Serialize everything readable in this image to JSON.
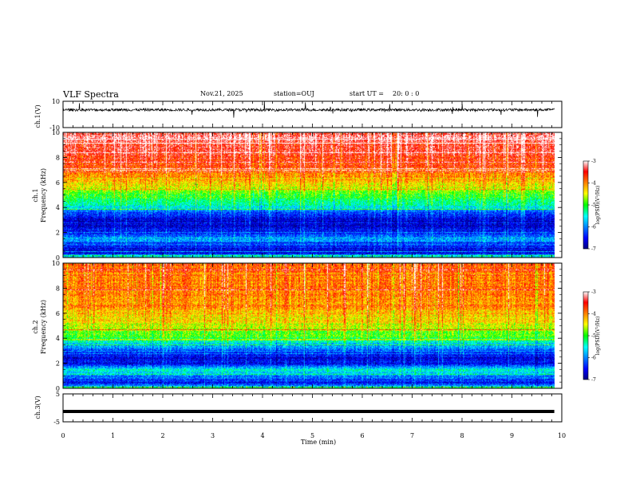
{
  "header": {
    "title": "VLF Spectra",
    "date": "Nov.21, 2025",
    "station": "station=OUJ",
    "start_label": "start  UT =",
    "start_value": "20: 0  : 0"
  },
  "chart_data": [
    {
      "type": "line",
      "name": "ch1-waveform",
      "ylabel": "ch.1(V)",
      "ylim": [
        -10,
        10
      ],
      "yticks": [
        "10",
        "-10"
      ],
      "xlim": [
        0,
        10
      ],
      "baseline": 3.5,
      "noise_amplitude": 1.0
    },
    {
      "type": "heatmap",
      "name": "ch1-spectrogram",
      "ylabel": "ch.1",
      "ylabel2": "Frequency (kHz)",
      "ylim": [
        0,
        10
      ],
      "yticks": [
        "0",
        "2",
        "4",
        "6",
        "8",
        "10"
      ],
      "xlim": [
        0,
        9.85
      ],
      "colorbar": {
        "label": "log(PSD)(V²/Hz)",
        "range": [
          -7,
          -3
        ],
        "ticks": [
          "-3",
          "-4",
          "-5",
          "-6",
          "-7"
        ]
      },
      "band_profile_khz": [
        0,
        0.5,
        1,
        1.5,
        2,
        2.5,
        3,
        3.5,
        4,
        4.5,
        5,
        5.5,
        6,
        6.5,
        7,
        7.5,
        8,
        8.5,
        9,
        9.5,
        10
      ],
      "band_profile_logpsd": [
        -5.2,
        -6.8,
        -6.3,
        -5.9,
        -6.5,
        -6.7,
        -6.7,
        -6.4,
        -5.6,
        -5.2,
        -4.9,
        -4.6,
        -4.3,
        -4.1,
        -3.9,
        -3.7,
        -3.6,
        -3.4,
        -3.4,
        -3.3,
        -3.3
      ]
    },
    {
      "type": "heatmap",
      "name": "ch2-spectrogram",
      "ylabel": "ch.2",
      "ylabel2": "Frequency (kHz)",
      "ylim": [
        0,
        10
      ],
      "yticks": [
        "0",
        "2",
        "4",
        "6",
        "8",
        "10"
      ],
      "xlim": [
        0,
        9.85
      ],
      "colorbar": {
        "label": "log(PSD)(V²/Hz)",
        "range": [
          -7,
          -3
        ],
        "ticks": [
          "-3",
          "-4",
          "-5",
          "-6",
          "-7"
        ]
      },
      "band_profile_khz": [
        0,
        0.5,
        1,
        1.5,
        2,
        2.5,
        3,
        3.5,
        4,
        4.5,
        5,
        5.5,
        6,
        6.5,
        7,
        7.5,
        8,
        8.5,
        9,
        9.5,
        10
      ],
      "band_profile_logpsd": [
        -5.3,
        -6.5,
        -6.0,
        -5.4,
        -6.5,
        -6.6,
        -6.2,
        -5.8,
        -5.1,
        -4.8,
        -4.5,
        -4.3,
        -4.2,
        -4.1,
        -4.0,
        -4.0,
        -3.9,
        -3.9,
        -3.9,
        -3.8,
        -3.8
      ]
    },
    {
      "type": "line",
      "name": "ch3-waveform",
      "ylabel": "ch.3(V)",
      "ylim": [
        -5,
        5
      ],
      "yticks": [
        "5",
        "-5"
      ],
      "xlim": [
        0,
        10
      ],
      "constant_value": -1.3
    }
  ],
  "xaxis": {
    "label": "Time (min)",
    "ticks": [
      "0",
      "1",
      "2",
      "3",
      "4",
      "5",
      "6",
      "7",
      "8",
      "9",
      "10"
    ]
  }
}
